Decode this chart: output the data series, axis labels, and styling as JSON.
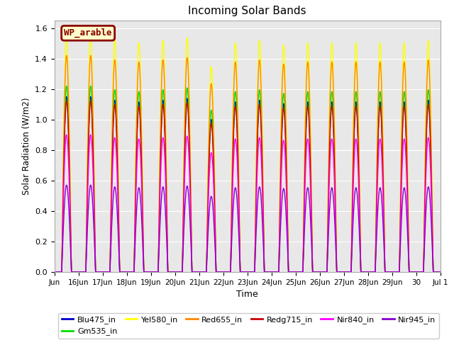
{
  "title": "Incoming Solar Bands",
  "xlabel": "Time",
  "ylabel": "Solar Radiation (W/m2)",
  "ylim": [
    0,
    1.65
  ],
  "legend_title": "WP_arable",
  "background_color": "#e8e8e8",
  "series": [
    {
      "name": "Blu475_in",
      "color": "#0000cc",
      "peak": 1.15,
      "lw": 1.0
    },
    {
      "name": "Gm535_in",
      "color": "#00dd00",
      "peak": 1.22,
      "lw": 1.0
    },
    {
      "name": "Yel580_in",
      "color": "#ffff00",
      "peak": 1.55,
      "lw": 1.0
    },
    {
      "name": "Red655_in",
      "color": "#ff8800",
      "peak": 1.42,
      "lw": 1.0
    },
    {
      "name": "Redg715_in",
      "color": "#cc0000",
      "peak": 1.12,
      "lw": 1.0
    },
    {
      "name": "Nir840_in",
      "color": "#ff00ff",
      "peak": 0.9,
      "lw": 1.0
    },
    {
      "name": "Nir945_in",
      "color": "#8800cc",
      "peak": 0.57,
      "lw": 1.0
    }
  ],
  "xtick_labels": [
    "Jun",
    "16Jun",
    "17Jun",
    "18Jun",
    "19Jun",
    "20Jun",
    "21Jun",
    "22Jun",
    "23Jun",
    "24Jun",
    "25Jun",
    "26Jun",
    "27Jun",
    "28Jun",
    "29Jun",
    "30",
    "Jul 1"
  ],
  "n_days": 16,
  "points_per_day": 300,
  "day_start": 0.3,
  "day_end": 0.7,
  "yticks": [
    0.0,
    0.2,
    0.4,
    0.6,
    0.8,
    1.0,
    1.2,
    1.4,
    1.6
  ],
  "day_variation": [
    1.0,
    1.0,
    0.98,
    0.97,
    0.98,
    0.99,
    0.87,
    0.97,
    0.98,
    0.96,
    0.97,
    0.97,
    0.97,
    0.97,
    0.97,
    0.98
  ]
}
